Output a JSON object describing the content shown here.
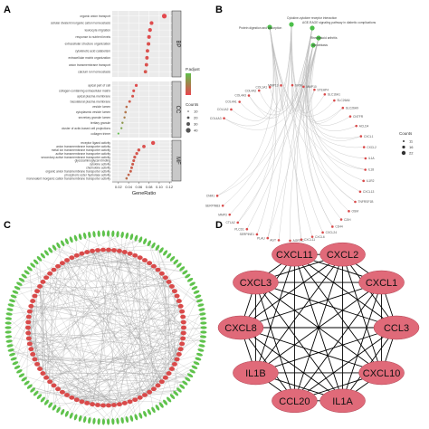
{
  "panels": [
    "A",
    "B",
    "C",
    "D"
  ],
  "panel_a": {
    "xlabel": "GeneRatio",
    "xticks": [
      "0.02",
      "0.04",
      "0.06",
      "0.08",
      "0.10",
      "0.12"
    ],
    "facets": [
      {
        "name": "BP",
        "terms": [
          {
            "t": "organic anion transport",
            "x": 0.11,
            "c": 22,
            "p": 0.001
          },
          {
            "t": "cellular divalent inorganic cation homeostasis",
            "x": 0.085,
            "c": 16,
            "p": 0.002
          },
          {
            "t": "leukocyte migration",
            "x": 0.082,
            "c": 16,
            "p": 0.002
          },
          {
            "t": "response to nutrient levels",
            "x": 0.08,
            "c": 15,
            "p": 0.002
          },
          {
            "t": "extracellular structure organization",
            "x": 0.079,
            "c": 15,
            "p": 0.003
          },
          {
            "t": "cytokinetic acid catabolism",
            "x": 0.077,
            "c": 14,
            "p": 0.003
          },
          {
            "t": "extracellular matrix organization",
            "x": 0.076,
            "c": 14,
            "p": 0.003
          },
          {
            "t": "anion transmembrane transport",
            "x": 0.075,
            "c": 14,
            "p": 0.003
          },
          {
            "t": "calcium ion homeostasis",
            "x": 0.073,
            "c": 13,
            "p": 0.004
          }
        ]
      },
      {
        "name": "CC",
        "terms": [
          {
            "t": "apical part of cell",
            "x": 0.055,
            "c": 10,
            "p": 0.002
          },
          {
            "t": "collagen-containing extracellular matrix",
            "x": 0.05,
            "c": 9,
            "p": 0.003
          },
          {
            "t": "apical plasma membrane",
            "x": 0.048,
            "c": 9,
            "p": 0.004
          },
          {
            "t": "basolateral plasma membrane",
            "x": 0.042,
            "c": 8,
            "p": 0.006
          },
          {
            "t": "vesicle lumen",
            "x": 0.036,
            "c": 6,
            "p": 0.01
          },
          {
            "t": "cytoplasmic vesicle lumen",
            "x": 0.034,
            "c": 6,
            "p": 0.012
          },
          {
            "t": "secretory granule lumen",
            "x": 0.032,
            "c": 5,
            "p": 0.014
          },
          {
            "t": "tertiary granule",
            "x": 0.028,
            "c": 5,
            "p": 0.02
          },
          {
            "t": "cluster of actin-based cell projections",
            "x": 0.026,
            "c": 4,
            "p": 0.024
          },
          {
            "t": "collagen trimer",
            "x": 0.02,
            "c": 3,
            "p": 0.03
          }
        ]
      },
      {
        "name": "MF",
        "terms": [
          {
            "t": "receptor ligand activity",
            "x": 0.088,
            "c": 17,
            "p": 0.002
          },
          {
            "t": "anion transmembrane transporter activity",
            "x": 0.07,
            "c": 13,
            "p": 0.003
          },
          {
            "t": "metal ion transmembrane transporter activity",
            "x": 0.06,
            "c": 11,
            "p": 0.004
          },
          {
            "t": "active transmembrane transporter activity",
            "x": 0.056,
            "c": 10,
            "p": 0.004
          },
          {
            "t": "secondary active transmembrane transporter activity",
            "x": 0.052,
            "c": 10,
            "p": 0.005
          },
          {
            "t": "glycosaminoglycan binding",
            "x": 0.05,
            "c": 9,
            "p": 0.005
          },
          {
            "t": "cytokine activity",
            "x": 0.048,
            "c": 9,
            "p": 0.006
          },
          {
            "t": "chemokine activity",
            "x": 0.046,
            "c": 8,
            "p": 0.006
          },
          {
            "t": "organic anion transmembrane transporter activity",
            "x": 0.044,
            "c": 8,
            "p": 0.007
          },
          {
            "t": "phosphoric ester hydrolase activity",
            "x": 0.04,
            "c": 7,
            "p": 0.008
          },
          {
            "t": "monovalent inorganic cation transmembrane transporter activity",
            "x": 0.036,
            "c": 6,
            "p": 0.01
          }
        ]
      }
    ],
    "legend": {
      "padj_title": "P.adjust",
      "counts_title": "Counts",
      "counts": [
        "10",
        "20",
        "30",
        "40"
      ],
      "colors": {
        "high": "#5fbf4a",
        "low": "#e8454e"
      }
    }
  },
  "panel_b": {
    "pathways": [
      "Protein digestion and absorption",
      "Cytokine-cytokine receptor interaction",
      "AGE-RAGE signaling pathway in diabetic complications",
      "Rheumatoid arthritis",
      "Amoebiasis"
    ],
    "genes": [
      "CNM1",
      "SERPINB3",
      "MMP3",
      "CTLA2",
      "PLCD1",
      "SERPINE1",
      "PLAU",
      "AGT",
      "AGRTIC",
      "CXCL11",
      "CXCL6",
      "CXCL24",
      "CD44",
      "C2IH",
      "OSM",
      "TNFRSF1B",
      "CXCL13",
      "IL1R2",
      "IL18",
      "IL1A",
      "CXCL2",
      "CXCL1",
      "ACLD4",
      "CNTFR",
      "SLC26A9",
      "SLC26A6",
      "SLC16A1",
      "STEAP4",
      "MMP10",
      "SRNI",
      "MMP13",
      "COL1A1",
      "COL4A2",
      "COL4A3",
      "COL4A1",
      "COL1A2",
      "COL4A3"
    ],
    "legend_title": "Counts",
    "legend_counts": [
      "11",
      "16",
      "22"
    ],
    "colors": {
      "gene": "#d94a4a",
      "pathway": "#4cbf4a",
      "edge": "#b8b8b8"
    }
  },
  "panel_c": {
    "colors": {
      "inner": "#d94a4a",
      "outer": "#5fc24c",
      "edge": "#9a9a9a"
    }
  },
  "panel_d": {
    "nodes": [
      "CXCL11",
      "CXCL2",
      "CXCL1",
      "CCL3",
      "CXCL10",
      "IL1A",
      "CCL20",
      "IL1B",
      "CXCL8",
      "CXCL3"
    ],
    "colors": {
      "node": "#e06a79",
      "stroke": "#b04050",
      "edge": "#000000"
    }
  }
}
